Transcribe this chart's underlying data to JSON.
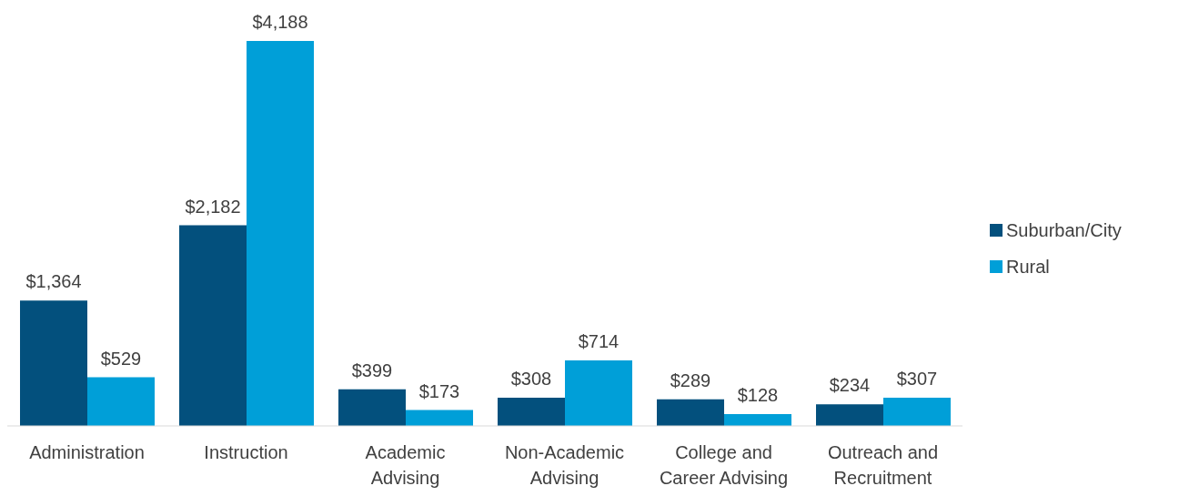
{
  "chart_data": {
    "type": "bar",
    "categories": [
      "Administration",
      "Instruction",
      "Academic Advising",
      "Non-Academic Advising",
      "College and Career Advising",
      "Outreach and Recruitment"
    ],
    "series": [
      {
        "name": "Suburban/City",
        "color": "#03507d",
        "values": [
          1364,
          2182,
          399,
          308,
          289,
          234
        ],
        "value_labels": [
          "$1,364",
          "$2,182",
          "$399",
          "$308",
          "$289",
          "$234"
        ]
      },
      {
        "name": "Rural",
        "color": "#009fd8",
        "values": [
          529,
          4188,
          173,
          714,
          128,
          307
        ],
        "value_labels": [
          "$529",
          "$4,188",
          "$173",
          "$714",
          "$128",
          "$307"
        ]
      }
    ],
    "legend": "right",
    "grid": false
  }
}
